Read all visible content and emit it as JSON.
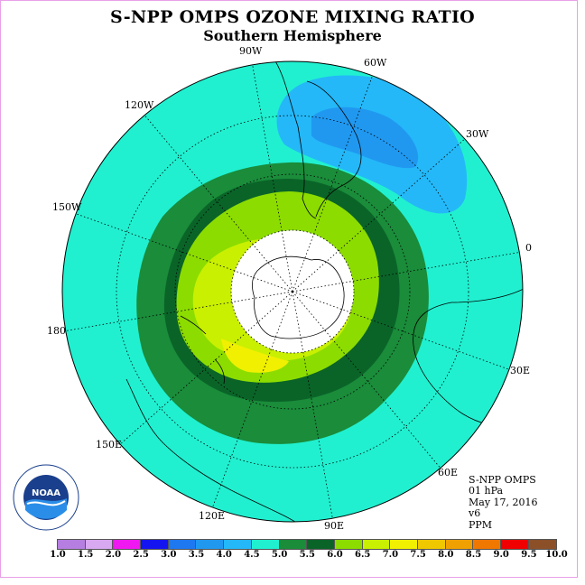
{
  "title": "S-NPP OMPS OZONE MIXING RATIO",
  "subtitle": "Southern Hemisphere",
  "longitude_labels": [
    "90W",
    "60W",
    "30W",
    "0",
    "30E",
    "60E",
    "90E",
    "120E",
    "150E",
    "180",
    "150W",
    "120W"
  ],
  "info": {
    "instrument": "S-NPP OMPS",
    "level": "01 hPa",
    "date": "May 17, 2016",
    "version": "v6",
    "units": "PPM"
  },
  "logo_text": "NOAA",
  "logo_ring_text": "NATIONAL OCEANIC AND ATMOSPHERIC ADMINISTRATION · U.S. DEPARTMENT OF COMMERCE",
  "colorbar": {
    "tick_labels": [
      "1.0",
      "1.5",
      "2.0",
      "2.5",
      "3.0",
      "3.5",
      "4.0",
      "4.5",
      "5.0",
      "5.5",
      "6.0",
      "6.5",
      "7.0",
      "7.5",
      "8.0",
      "8.5",
      "9.0",
      "9.5",
      "10.0"
    ],
    "colors": [
      "#b57ee0",
      "#d8a8f0",
      "#f018f0",
      "#1414f0",
      "#1e78f0",
      "#2098f0",
      "#24b8f8",
      "#20f0d0",
      "#1a8c3a",
      "#0a6428",
      "#8cdc00",
      "#c8f000",
      "#f0f000",
      "#f0c800",
      "#f0a000",
      "#f07800",
      "#f00000",
      "#8c5028"
    ]
  },
  "map": {
    "projection": "south polar stereographic",
    "background_level_ppm": "4.5-5.0"
  }
}
